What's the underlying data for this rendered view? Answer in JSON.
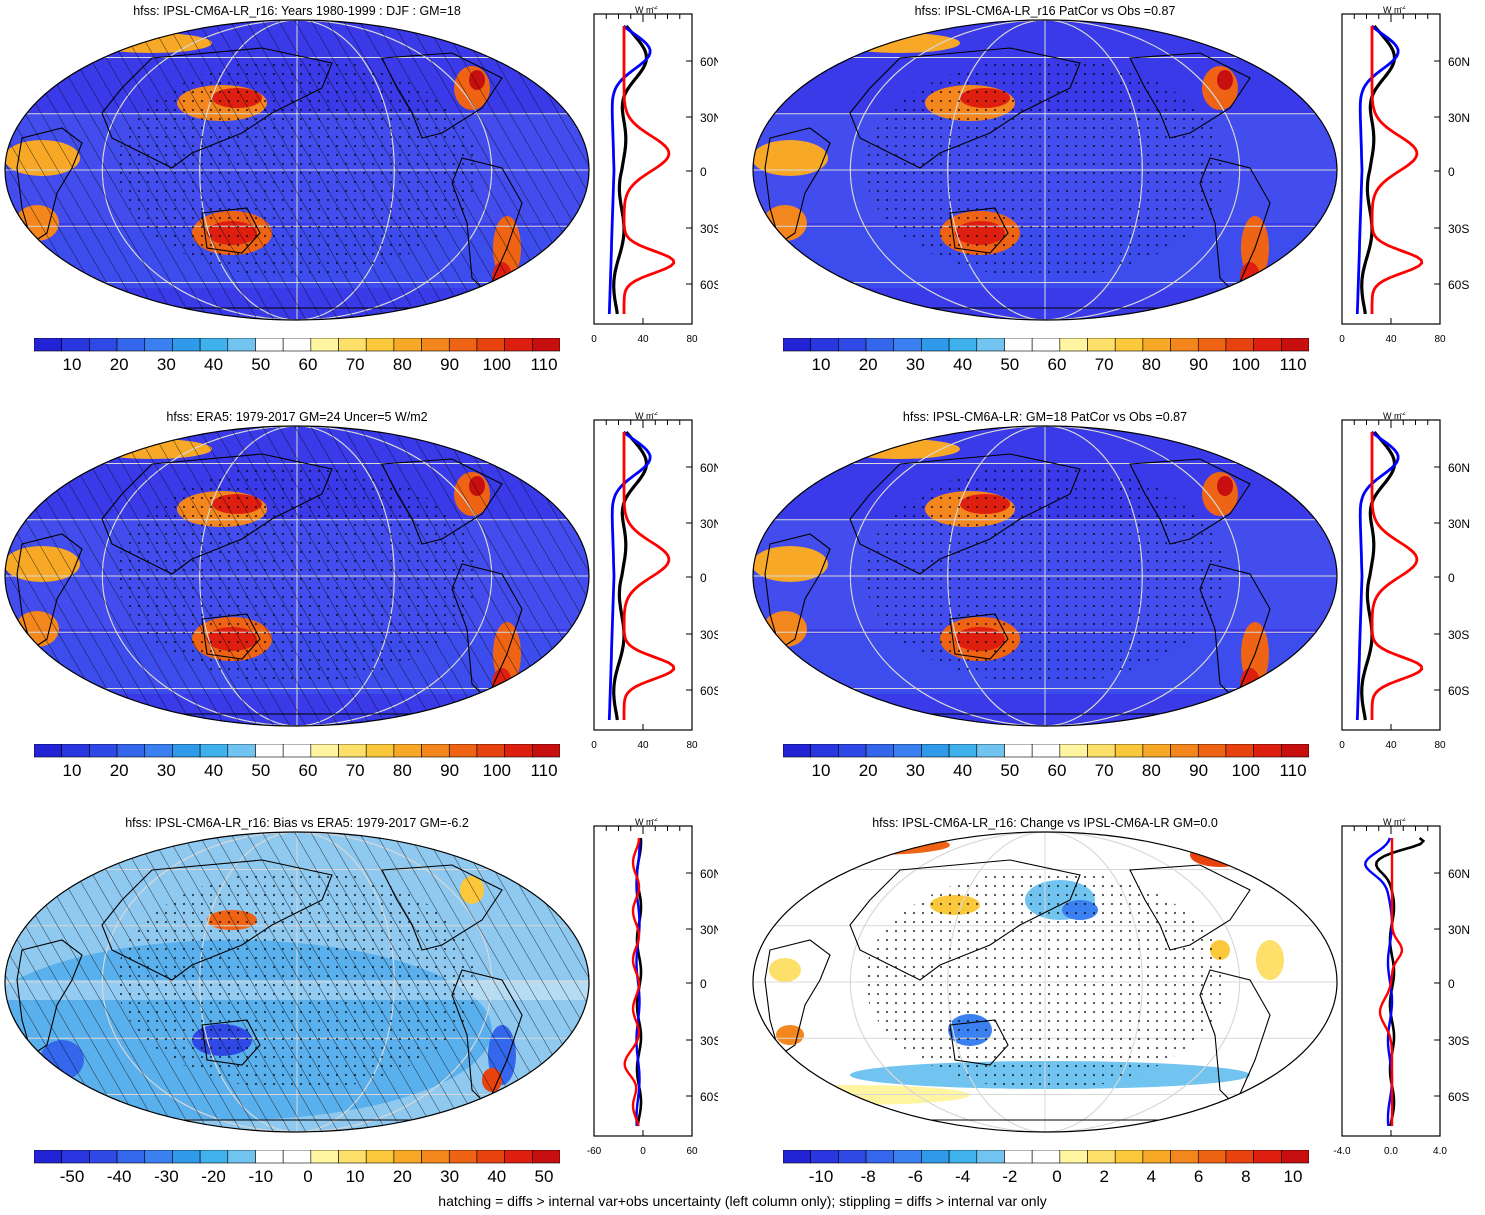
{
  "panels": [
    {
      "title": "hfss: IPSL-CM6A-LR_r16: Years 1980-1999 : DJF : GM=18",
      "scale": "abs",
      "colorbar_labels": [
        "10",
        "20",
        "30",
        "40",
        "50",
        "60",
        "70",
        "80",
        "90",
        "100",
        "110"
      ],
      "profile_ticks": [
        "0",
        "40",
        "80"
      ]
    },
    {
      "title": "hfss: IPSL-CM6A-LR_r16 PatCor vs Obs =0.87",
      "scale": "abs",
      "colorbar_labels": [
        "10",
        "20",
        "30",
        "40",
        "50",
        "60",
        "70",
        "80",
        "90",
        "100",
        "110"
      ],
      "profile_ticks": [
        "0",
        "40",
        "80"
      ]
    },
    {
      "title": "hfss: ERA5: 1979-2017 GM=24 Uncer=5 W/m2",
      "scale": "abs",
      "colorbar_labels": [
        "10",
        "20",
        "30",
        "40",
        "50",
        "60",
        "70",
        "80",
        "90",
        "100",
        "110"
      ],
      "profile_ticks": [
        "0",
        "40",
        "80"
      ]
    },
    {
      "title": "hfss: IPSL-CM6A-LR: GM=18 PatCor vs Obs =0.87",
      "scale": "abs",
      "colorbar_labels": [
        "10",
        "20",
        "30",
        "40",
        "50",
        "60",
        "70",
        "80",
        "90",
        "100",
        "110"
      ],
      "profile_ticks": [
        "0",
        "40",
        "80"
      ]
    },
    {
      "title": "hfss: IPSL-CM6A-LR_r16: Bias vs ERA5: 1979-2017 GM=-6.2",
      "scale": "bias",
      "colorbar_labels": [
        "-50",
        "-40",
        "-30",
        "-20",
        "-10",
        "0",
        "10",
        "20",
        "30",
        "40",
        "50"
      ],
      "profile_ticks": [
        "-60",
        "0",
        "60"
      ]
    },
    {
      "title": "hfss: IPSL-CM6A-LR_r16: Change vs IPSL-CM6A-LR GM=0.0",
      "scale": "change",
      "colorbar_labels": [
        "-10",
        "-8",
        "-6",
        "-4",
        "-2",
        "0",
        "2",
        "4",
        "6",
        "8",
        "10"
      ],
      "profile_ticks": [
        "-4.0",
        "0.0",
        "4.0"
      ]
    }
  ],
  "latitude_labels": [
    "60N",
    "30N",
    "0",
    "30S",
    "60S"
  ],
  "unit_label": "W m",
  "unit_exp": "-2",
  "footnote": "hatching = diffs > internal var+obs uncertainty (left column only); stippling = diffs > internal var only",
  "colors": {
    "abs": [
      "#2323d6",
      "#2a36e0",
      "#2f49e6",
      "#3567ec",
      "#3b80f0",
      "#2f9ae9",
      "#3fb1ec",
      "#70c4ef",
      "#ffffff",
      "#ffffff",
      "#fff4a0",
      "#fde06a",
      "#fbc83c",
      "#f7a826",
      "#f3861c",
      "#ee6414",
      "#e8420f",
      "#de1f10",
      "#c80f0f"
    ],
    "ocean": "#3a3ae8",
    "ocean_alt": "#4a5cf0",
    "land_warm": "#e8441a",
    "land_mid": "#f7a826",
    "bias_bg": "#8fc9ef",
    "change_bg": "#ffffff",
    "profile_model": "#000000",
    "profile_obs": "#0000ff",
    "profile_diff": "#ff0000"
  }
}
